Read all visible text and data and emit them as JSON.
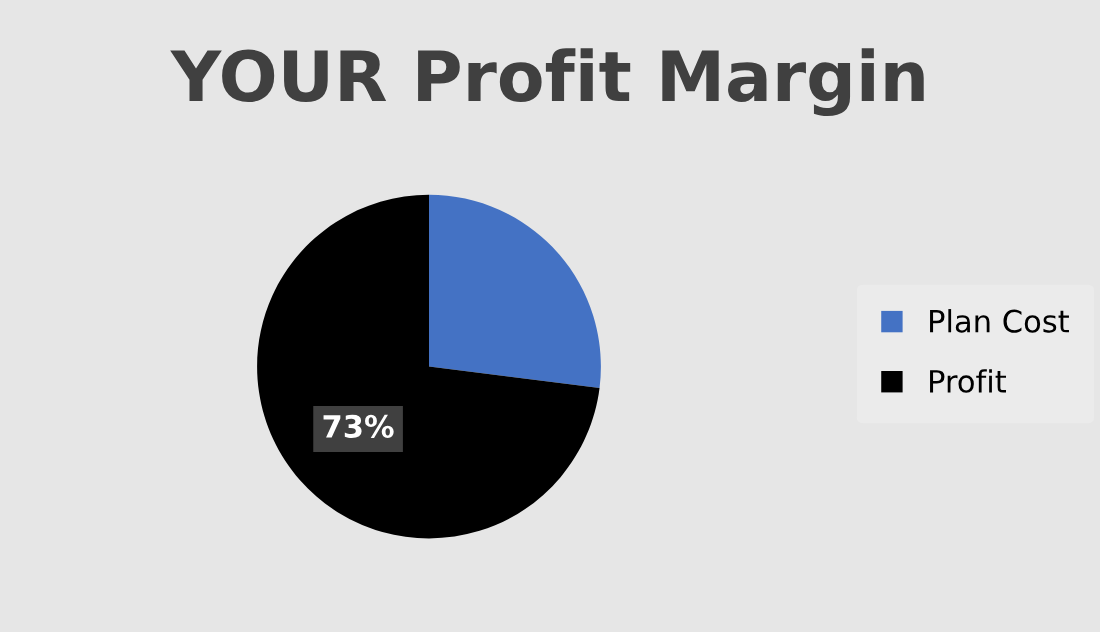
{
  "chart_data": {
    "type": "pie",
    "title": "YOUR Profit Margin",
    "categories": [
      "Plan Cost",
      "Profit"
    ],
    "values": [
      27,
      73
    ],
    "colors": [
      "#4472c4",
      "#000000"
    ],
    "value_labels": [
      null,
      "73%"
    ],
    "legend": "right"
  }
}
